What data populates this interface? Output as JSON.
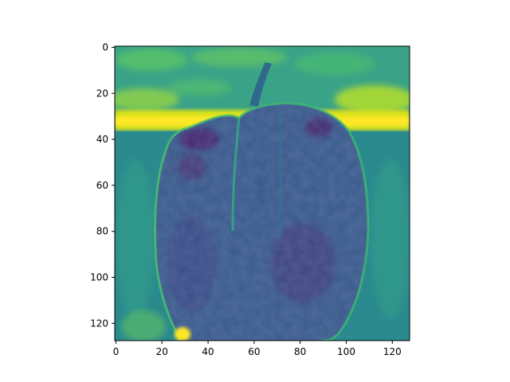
{
  "chart_data": {
    "type": "heatmap",
    "title": "",
    "xlabel": "",
    "ylabel": "",
    "xlim": [
      -0.5,
      127.5
    ],
    "ylim": [
      127.5,
      -0.5
    ],
    "image_shape": [
      128,
      128
    ],
    "colormap": "viridis",
    "grid": false,
    "legend": "none",
    "xticks": [
      0,
      20,
      40,
      60,
      80,
      100,
      120
    ],
    "yticks": [
      0,
      20,
      40,
      60,
      80,
      100,
      120
    ],
    "xtick_labels": [
      "0",
      "20",
      "40",
      "60",
      "80",
      "100",
      "120"
    ],
    "ytick_labels": [
      "0",
      "20",
      "40",
      "60",
      "80",
      "100",
      "120"
    ],
    "content": "edge-magnitude image of a bell pepper with a stem, bright background band near rows 25-38",
    "colors": {
      "low": "#440154",
      "mid_low": "#3b528b",
      "mid": "#21918c",
      "mid_high": "#5ec962",
      "high": "#fde725"
    }
  }
}
